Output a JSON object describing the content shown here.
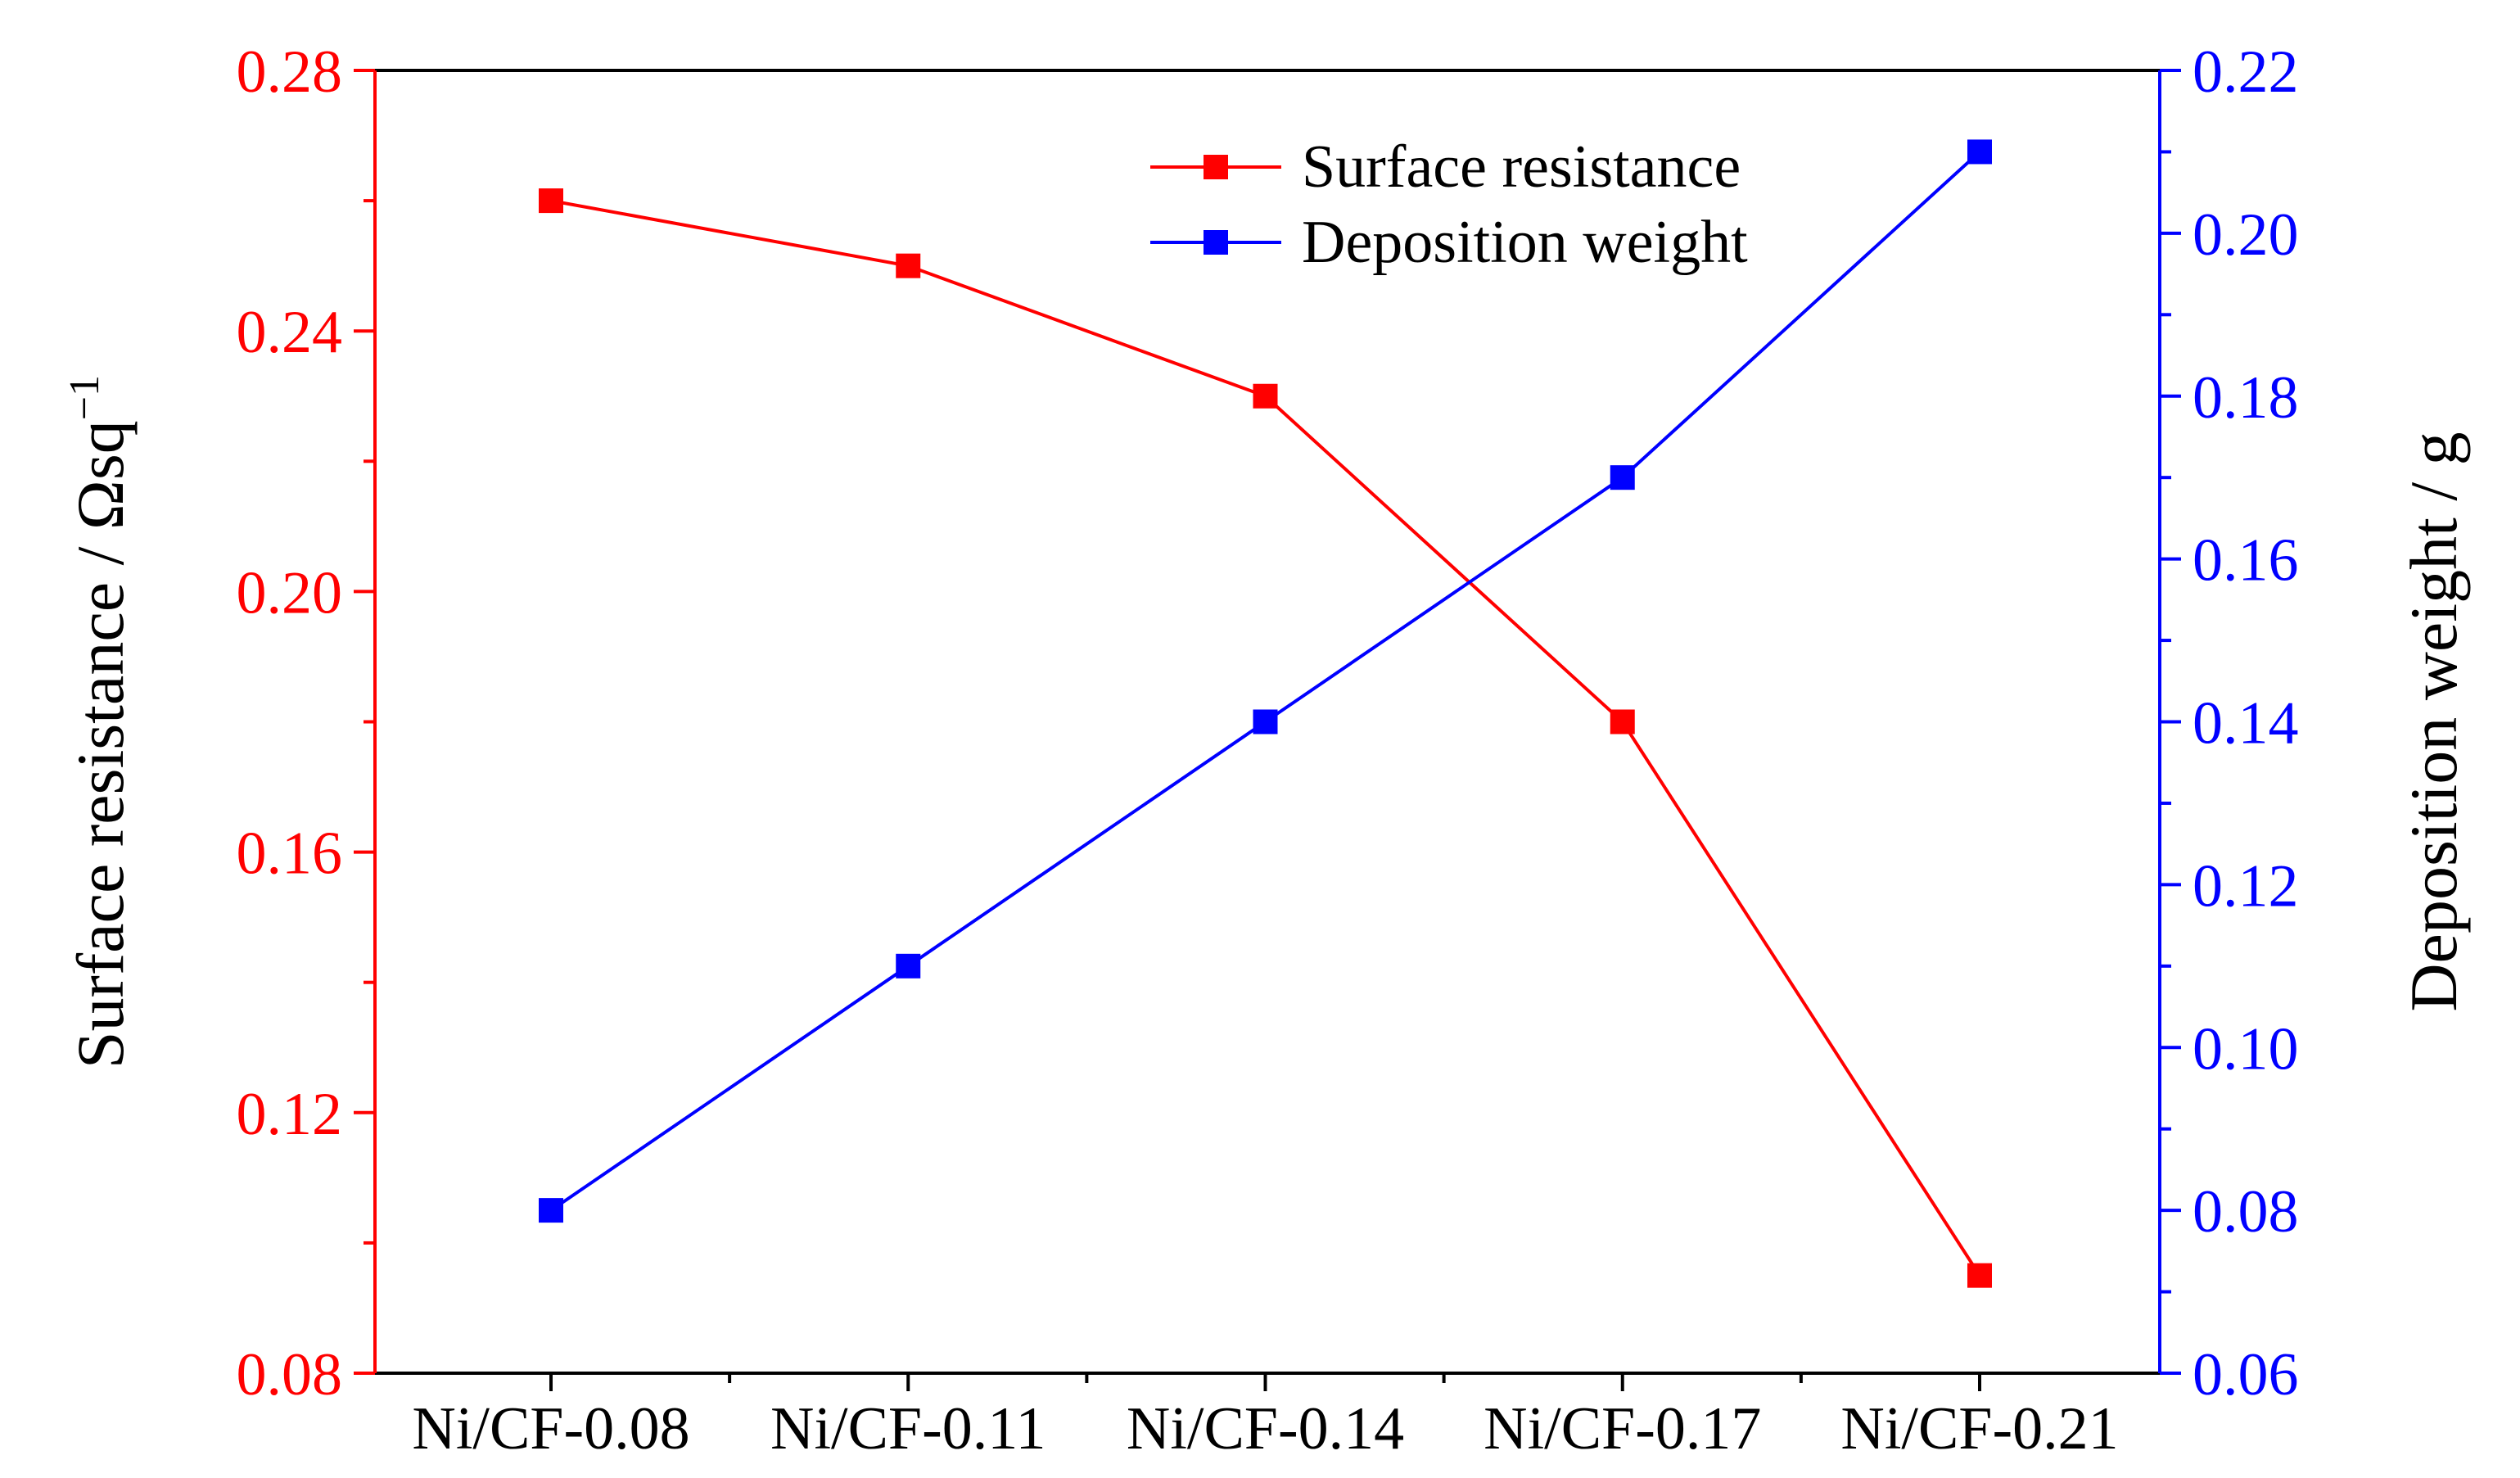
{
  "chart_data": {
    "type": "line",
    "title": "",
    "categories": [
      "Ni/CF-0.08",
      "Ni/CF-0.11",
      "Ni/CF-0.14",
      "Ni/CF-0.17",
      "Ni/CF-0.21"
    ],
    "xlabel": "",
    "y_left": {
      "label_main": "Surface resistance / Ωsq",
      "label_sup": "−1",
      "range": [
        0.08,
        0.28
      ],
      "ticks": [
        "0.08",
        "0.12",
        "0.16",
        "0.20",
        "0.24",
        "0.28"
      ],
      "color": "#ff0000"
    },
    "y_right": {
      "label": "Deposition weight / g",
      "range": [
        0.06,
        0.22
      ],
      "ticks": [
        "0.06",
        "0.08",
        "0.10",
        "0.12",
        "0.14",
        "0.16",
        "0.18",
        "0.20",
        "0.22"
      ],
      "color": "#0000ff"
    },
    "series": [
      {
        "name": "Surface resistance",
        "axis": "left",
        "color": "#ff0000",
        "values": [
          0.26,
          0.25,
          0.23,
          0.18,
          0.095
        ]
      },
      {
        "name": "Deposition weight",
        "axis": "right",
        "color": "#0000ff",
        "values": [
          0.08,
          0.11,
          0.14,
          0.17,
          0.21
        ]
      }
    ],
    "legend": {
      "position": "top-right",
      "entries": [
        "Surface resistance",
        "Deposition weight"
      ]
    },
    "grid": false
  }
}
